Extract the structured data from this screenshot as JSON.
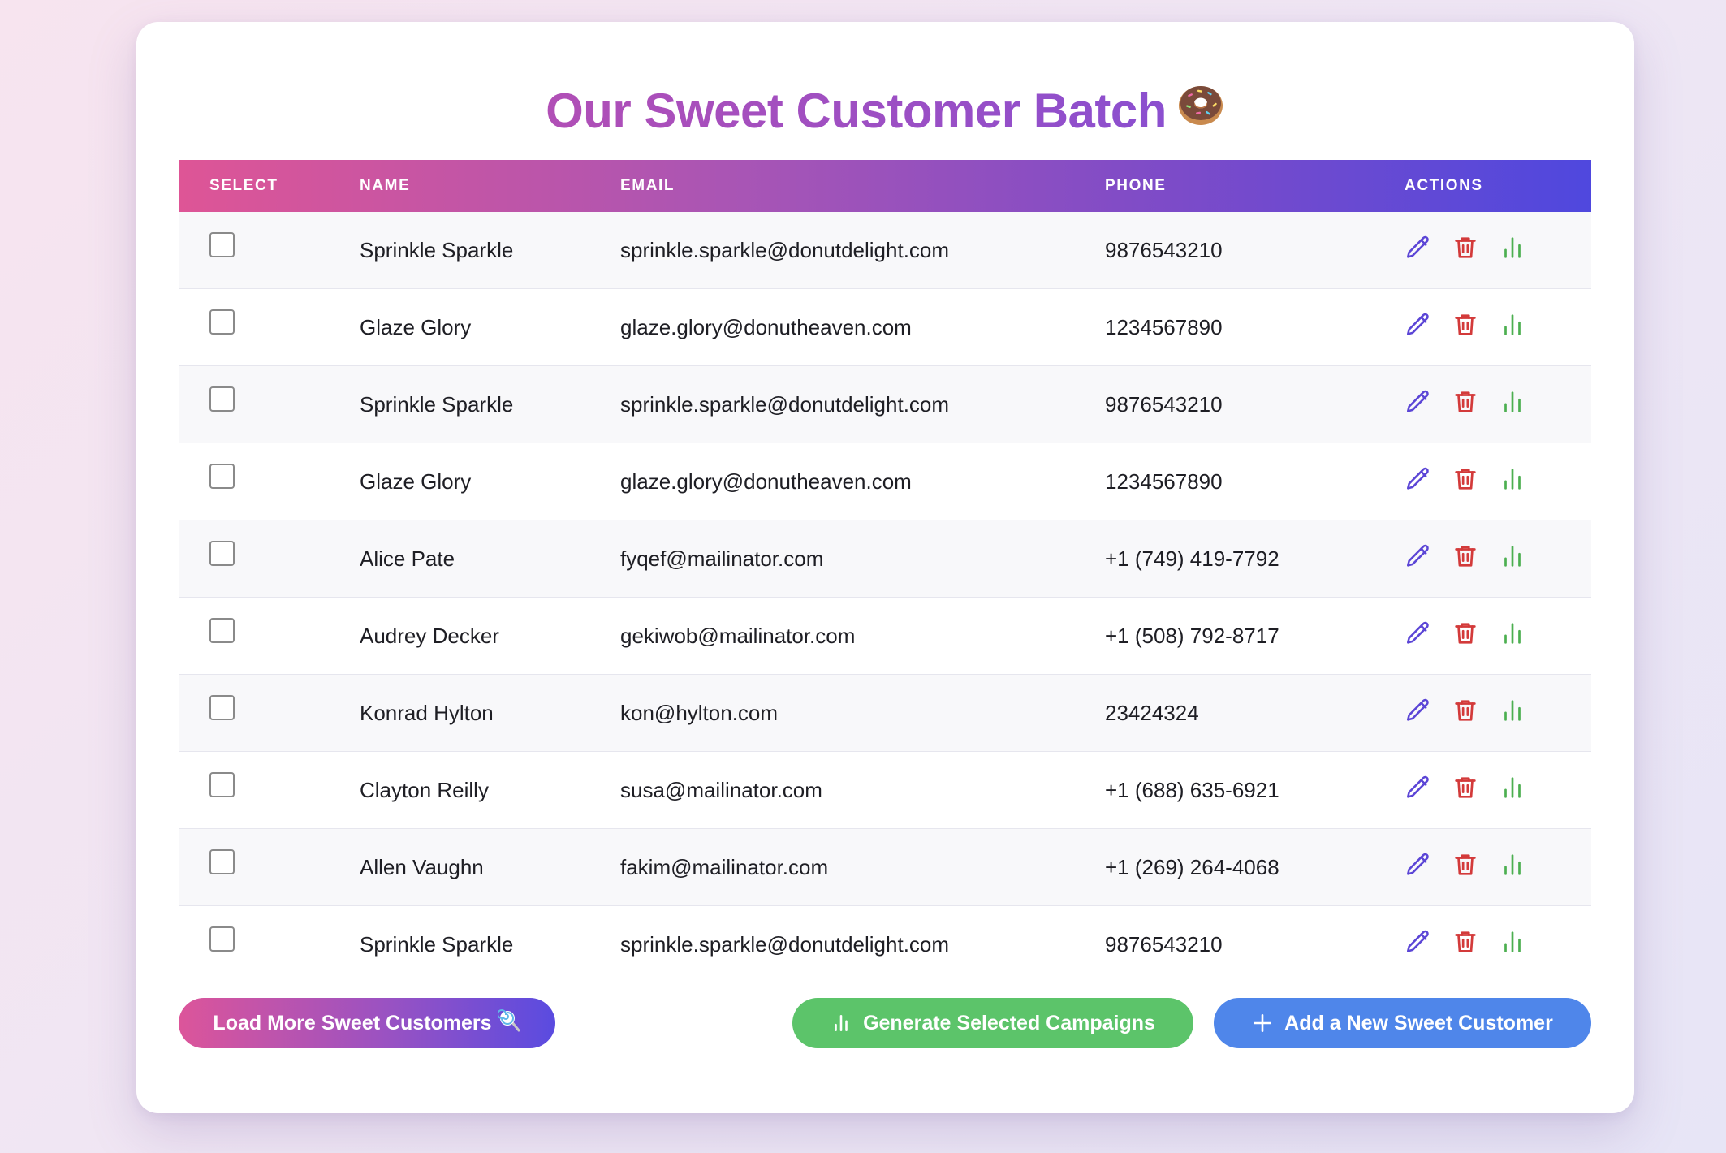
{
  "page": {
    "title": "Our Sweet Customer Batch",
    "title_emoji": "donut-icon"
  },
  "table": {
    "headers": {
      "select": "SELECT",
      "name": "NAME",
      "email": "EMAIL",
      "phone": "PHONE",
      "actions": "ACTIONS"
    },
    "rows": [
      {
        "name": "Sprinkle Sparkle",
        "email": "sprinkle.sparkle@donutdelight.com",
        "phone": "9876543210",
        "selected": false
      },
      {
        "name": "Glaze Glory",
        "email": "glaze.glory@donutheaven.com",
        "phone": "1234567890",
        "selected": false
      },
      {
        "name": "Sprinkle Sparkle",
        "email": "sprinkle.sparkle@donutdelight.com",
        "phone": "9876543210",
        "selected": false
      },
      {
        "name": "Glaze Glory",
        "email": "glaze.glory@donutheaven.com",
        "phone": "1234567890",
        "selected": false
      },
      {
        "name": "Alice Pate",
        "email": "fyqef@mailinator.com",
        "phone": "+1 (749) 419-7792",
        "selected": false
      },
      {
        "name": "Audrey Decker",
        "email": "gekiwob@mailinator.com",
        "phone": "+1 (508) 792-8717",
        "selected": false
      },
      {
        "name": "Konrad Hylton",
        "email": "kon@hylton.com",
        "phone": "23424324",
        "selected": false
      },
      {
        "name": "Clayton Reilly",
        "email": "susa@mailinator.com",
        "phone": "+1 (688) 635-6921",
        "selected": false
      },
      {
        "name": "Allen Vaughn",
        "email": "fakim@mailinator.com",
        "phone": "+1 (269) 264-4068",
        "selected": false
      },
      {
        "name": "Sprinkle Sparkle",
        "email": "sprinkle.sparkle@donutdelight.com",
        "phone": "9876543210",
        "selected": false
      }
    ],
    "row_actions": [
      "edit-icon",
      "trash-icon",
      "bar-chart-icon"
    ]
  },
  "buttons": {
    "load_more": "Load More Sweet Customers",
    "load_more_icon": "lollipop-icon",
    "generate": "Generate Selected Campaigns",
    "generate_icon": "bar-chart-icon",
    "add": "Add a New Sweet Customer",
    "add_icon": "plus-icon"
  },
  "colors": {
    "title_gradient": [
      "#b14fb6",
      "#8b4fcf"
    ],
    "header_gradient": [
      "#de5596",
      "#a855b5",
      "#7d4bc8",
      "#4f48de"
    ],
    "edit_icon": "#5b45d6",
    "trash_icon": "#d33a3a",
    "chart_icon": "#4caf50",
    "generate_button": "#5cc46a",
    "add_button": "#4f86ea"
  }
}
